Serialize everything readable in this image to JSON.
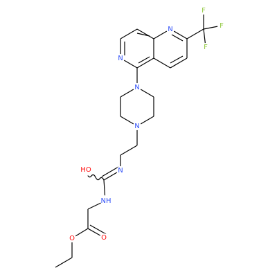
{
  "atoms": {
    "labels": [
      "F",
      "F",
      "F",
      "N",
      "N",
      "N",
      "N",
      "N",
      "HO",
      "NH",
      "O",
      "O"
    ]
  }
}
